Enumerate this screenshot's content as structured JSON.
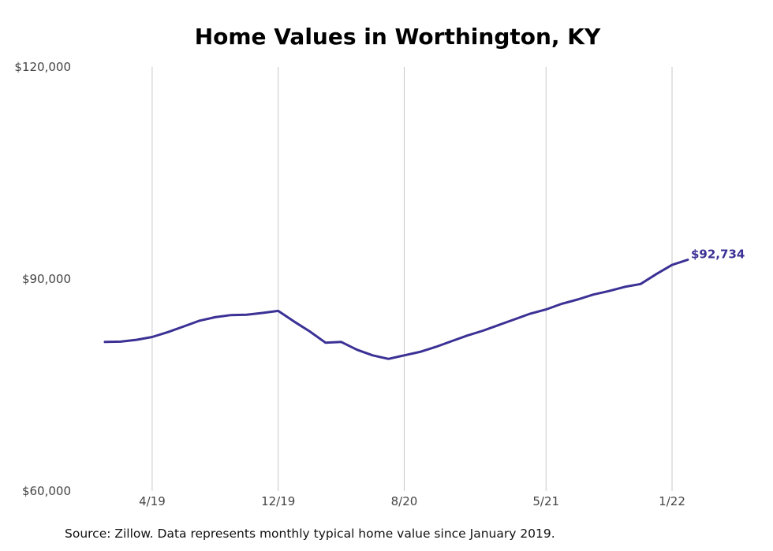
{
  "chart_data": {
    "type": "line",
    "title": "Home Values in Worthington, KY",
    "y_tick_labels": [
      "$60,000",
      "$90,000",
      "$120,000"
    ],
    "y_ticks": [
      60000,
      90000,
      120000
    ],
    "ylim": [
      60000,
      120000
    ],
    "x_tick_labels": [
      "4/19",
      "12/19",
      "8/20",
      "5/21",
      "1/22"
    ],
    "x_tick_months": [
      "2019-04",
      "2019-12",
      "2020-08",
      "2021-05",
      "2022-01"
    ],
    "grid": "vertical",
    "line_color": "#3b3195",
    "end_label": "$92,734",
    "x": [
      "2019-01",
      "2019-02",
      "2019-03",
      "2019-04",
      "2019-05",
      "2019-06",
      "2019-07",
      "2019-08",
      "2019-09",
      "2019-10",
      "2019-11",
      "2019-12",
      "2020-01",
      "2020-02",
      "2020-03",
      "2020-04",
      "2020-05",
      "2020-06",
      "2020-07",
      "2020-08",
      "2020-09",
      "2020-10",
      "2020-11",
      "2020-12",
      "2021-01",
      "2021-02",
      "2021-03",
      "2021-04",
      "2021-05",
      "2021-06",
      "2021-07",
      "2021-08",
      "2021-09",
      "2021-10",
      "2021-11",
      "2021-12",
      "2022-01",
      "2022-02"
    ],
    "values": [
      81100,
      81150,
      81400,
      81800,
      82500,
      83300,
      84100,
      84600,
      84900,
      84950,
      85200,
      85500,
      84000,
      82600,
      81000,
      81100,
      80000,
      79200,
      78700,
      79200,
      79700,
      80400,
      81200,
      82000,
      82700,
      83500,
      84300,
      85100,
      85700,
      86500,
      87100,
      87800,
      88300,
      88900,
      89300,
      90700,
      92000,
      92734
    ]
  },
  "source_note": "Source: Zillow. Data represents monthly typical home value since January 2019."
}
